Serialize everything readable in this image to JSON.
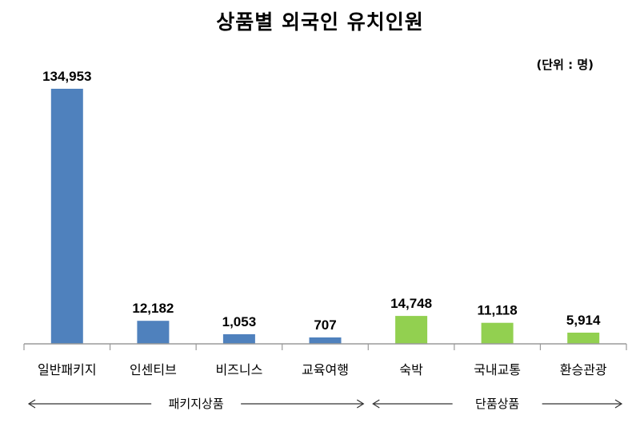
{
  "unit_label": "(단위 : 명)",
  "chart_data": {
    "type": "bar",
    "title": "상품별 외국인 유치인원",
    "xlabel": "",
    "ylabel": "",
    "ylim": [
      0,
      140000
    ],
    "grid": false,
    "categories": [
      "일반패키지",
      "인센티브",
      "비즈니스",
      "교육여행",
      "숙박",
      "국내교통",
      "환승관광"
    ],
    "values": [
      134953,
      12182,
      1053,
      707,
      14748,
      11118,
      5914
    ],
    "value_labels": [
      "134,953",
      "12,182",
      "1,053",
      "707",
      "14,748",
      "11,118",
      "5,914"
    ],
    "bar_colors": [
      "#4f81bd",
      "#4f81bd",
      "#4f81bd",
      "#4f81bd",
      "#92d050",
      "#92d050",
      "#92d050"
    ],
    "groups": [
      {
        "label": "패키지상품",
        "start": 0,
        "end": 3
      },
      {
        "label": "단품상품",
        "start": 4,
        "end": 6
      }
    ]
  }
}
